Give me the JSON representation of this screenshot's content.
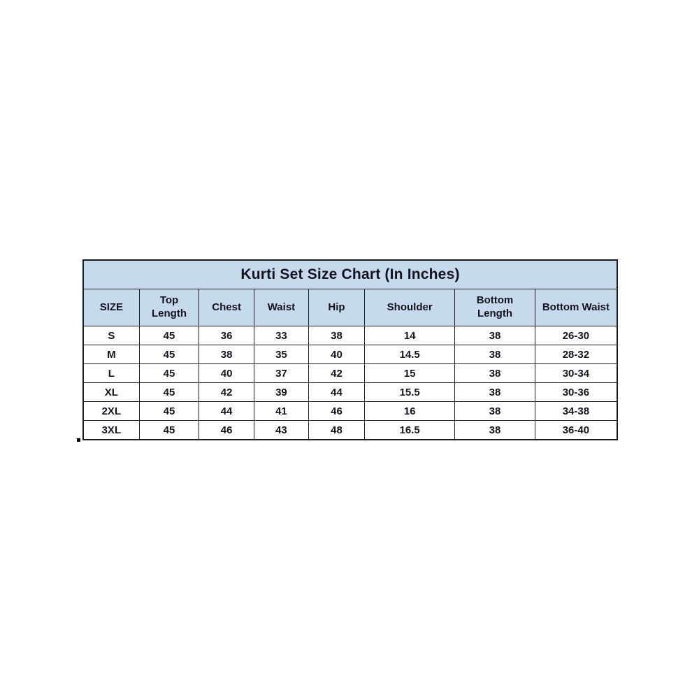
{
  "page": {
    "background_color": "#ffffff"
  },
  "colors": {
    "header_fill": "#c7d9ed",
    "grid_border": "#1b1b1b",
    "text": "#14141f",
    "row_fill": "#ffffff"
  },
  "chart_data": {
    "type": "table",
    "title": "Kurti Set Size Chart (In Inches)",
    "columns": [
      "SIZE",
      "Top Length",
      "Chest",
      "Waist",
      "Hip",
      "Shoulder",
      "Bottom Length",
      "Bottom Waist"
    ],
    "rows": [
      [
        "S",
        "45",
        "36",
        "33",
        "38",
        "14",
        "38",
        "26-30"
      ],
      [
        "M",
        "45",
        "38",
        "35",
        "40",
        "14.5",
        "38",
        "28-32"
      ],
      [
        "L",
        "45",
        "40",
        "37",
        "42",
        "15",
        "38",
        "30-34"
      ],
      [
        "XL",
        "45",
        "42",
        "39",
        "44",
        "15.5",
        "38",
        "30-36"
      ],
      [
        "2XL",
        "45",
        "44",
        "41",
        "46",
        "16",
        "38",
        "34-38"
      ],
      [
        "3XL",
        "45",
        "46",
        "43",
        "48",
        "16.5",
        "38",
        "36-40"
      ]
    ],
    "layout": {
      "legend": "none",
      "grid": "on",
      "units": "inches"
    }
  }
}
